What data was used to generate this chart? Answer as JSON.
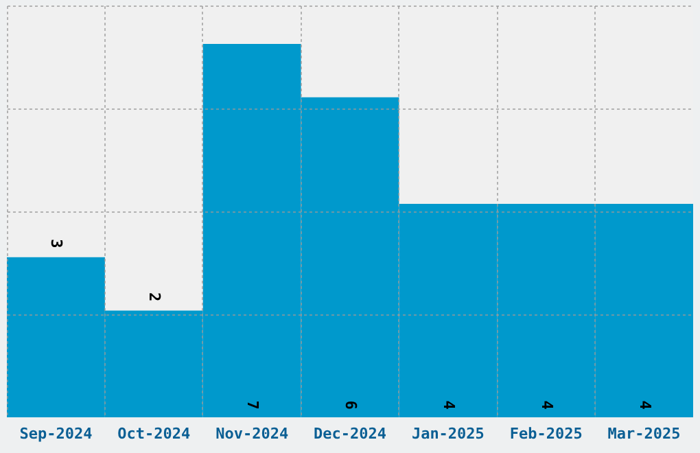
{
  "chart_data": {
    "type": "bar",
    "categories": [
      "Sep-2024",
      "Oct-2024",
      "Nov-2024",
      "Dec-2024",
      "Jan-2025",
      "Feb-2025",
      "Mar-2025"
    ],
    "values": [
      3,
      2,
      7,
      6,
      4,
      4,
      4
    ],
    "color": "#0099cc",
    "ylim": [
      0,
      7.72
    ],
    "yticks": [
      {
        "value": 1.93,
        "label": null
      },
      {
        "value": 3.86,
        "label": null
      },
      {
        "value": 5.79,
        "label": null
      },
      {
        "value": 7.72,
        "label": null
      }
    ],
    "grid": true,
    "tick_labels": "x",
    "data_labels": true
  }
}
